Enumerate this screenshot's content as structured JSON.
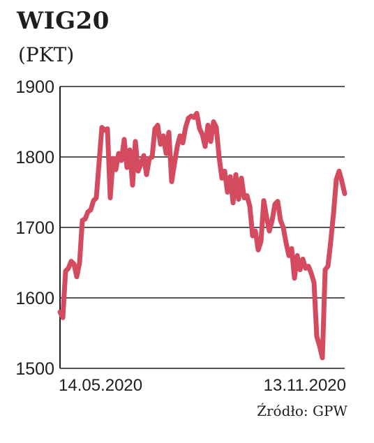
{
  "chart_data": {
    "type": "line",
    "title": "WIG20",
    "subtitle": "(PKT)",
    "source": "Źródło: GPW",
    "xlabel": "",
    "ylabel": "",
    "ylim": [
      1500,
      1900
    ],
    "yticks": [
      1500,
      1600,
      1700,
      1800,
      1900
    ],
    "x_range_labels": [
      "14.05.2020",
      "13.11.2020"
    ],
    "grid": true,
    "line_color": "#d44a5e",
    "series": [
      {
        "values": [
          1580,
          1572,
          1638,
          1642,
          1652,
          1648,
          1630,
          1650,
          1710,
          1712,
          1722,
          1725,
          1738,
          1742,
          1792,
          1842,
          1838,
          1840,
          1742,
          1798,
          1782,
          1805,
          1795,
          1825,
          1785,
          1810,
          1760,
          1822,
          1780,
          1790,
          1802,
          1775,
          1798,
          1800,
          1840,
          1845,
          1818,
          1830,
          1805,
          1835,
          1765,
          1790,
          1815,
          1830,
          1820,
          1842,
          1855,
          1858,
          1856,
          1862,
          1840,
          1832,
          1815,
          1845,
          1822,
          1850,
          1842,
          1800,
          1770,
          1780,
          1750,
          1772,
          1735,
          1775,
          1740,
          1770,
          1742,
          1745,
          1730,
          1688,
          1695,
          1668,
          1680,
          1738,
          1715,
          1695,
          1710,
          1733,
          1737,
          1710,
          1700,
          1678,
          1660,
          1670,
          1628,
          1660,
          1640,
          1655,
          1642,
          1645,
          1635,
          1622,
          1545,
          1532,
          1515,
          1640,
          1645,
          1680,
          1720,
          1768,
          1780,
          1765,
          1748
        ]
      }
    ]
  }
}
